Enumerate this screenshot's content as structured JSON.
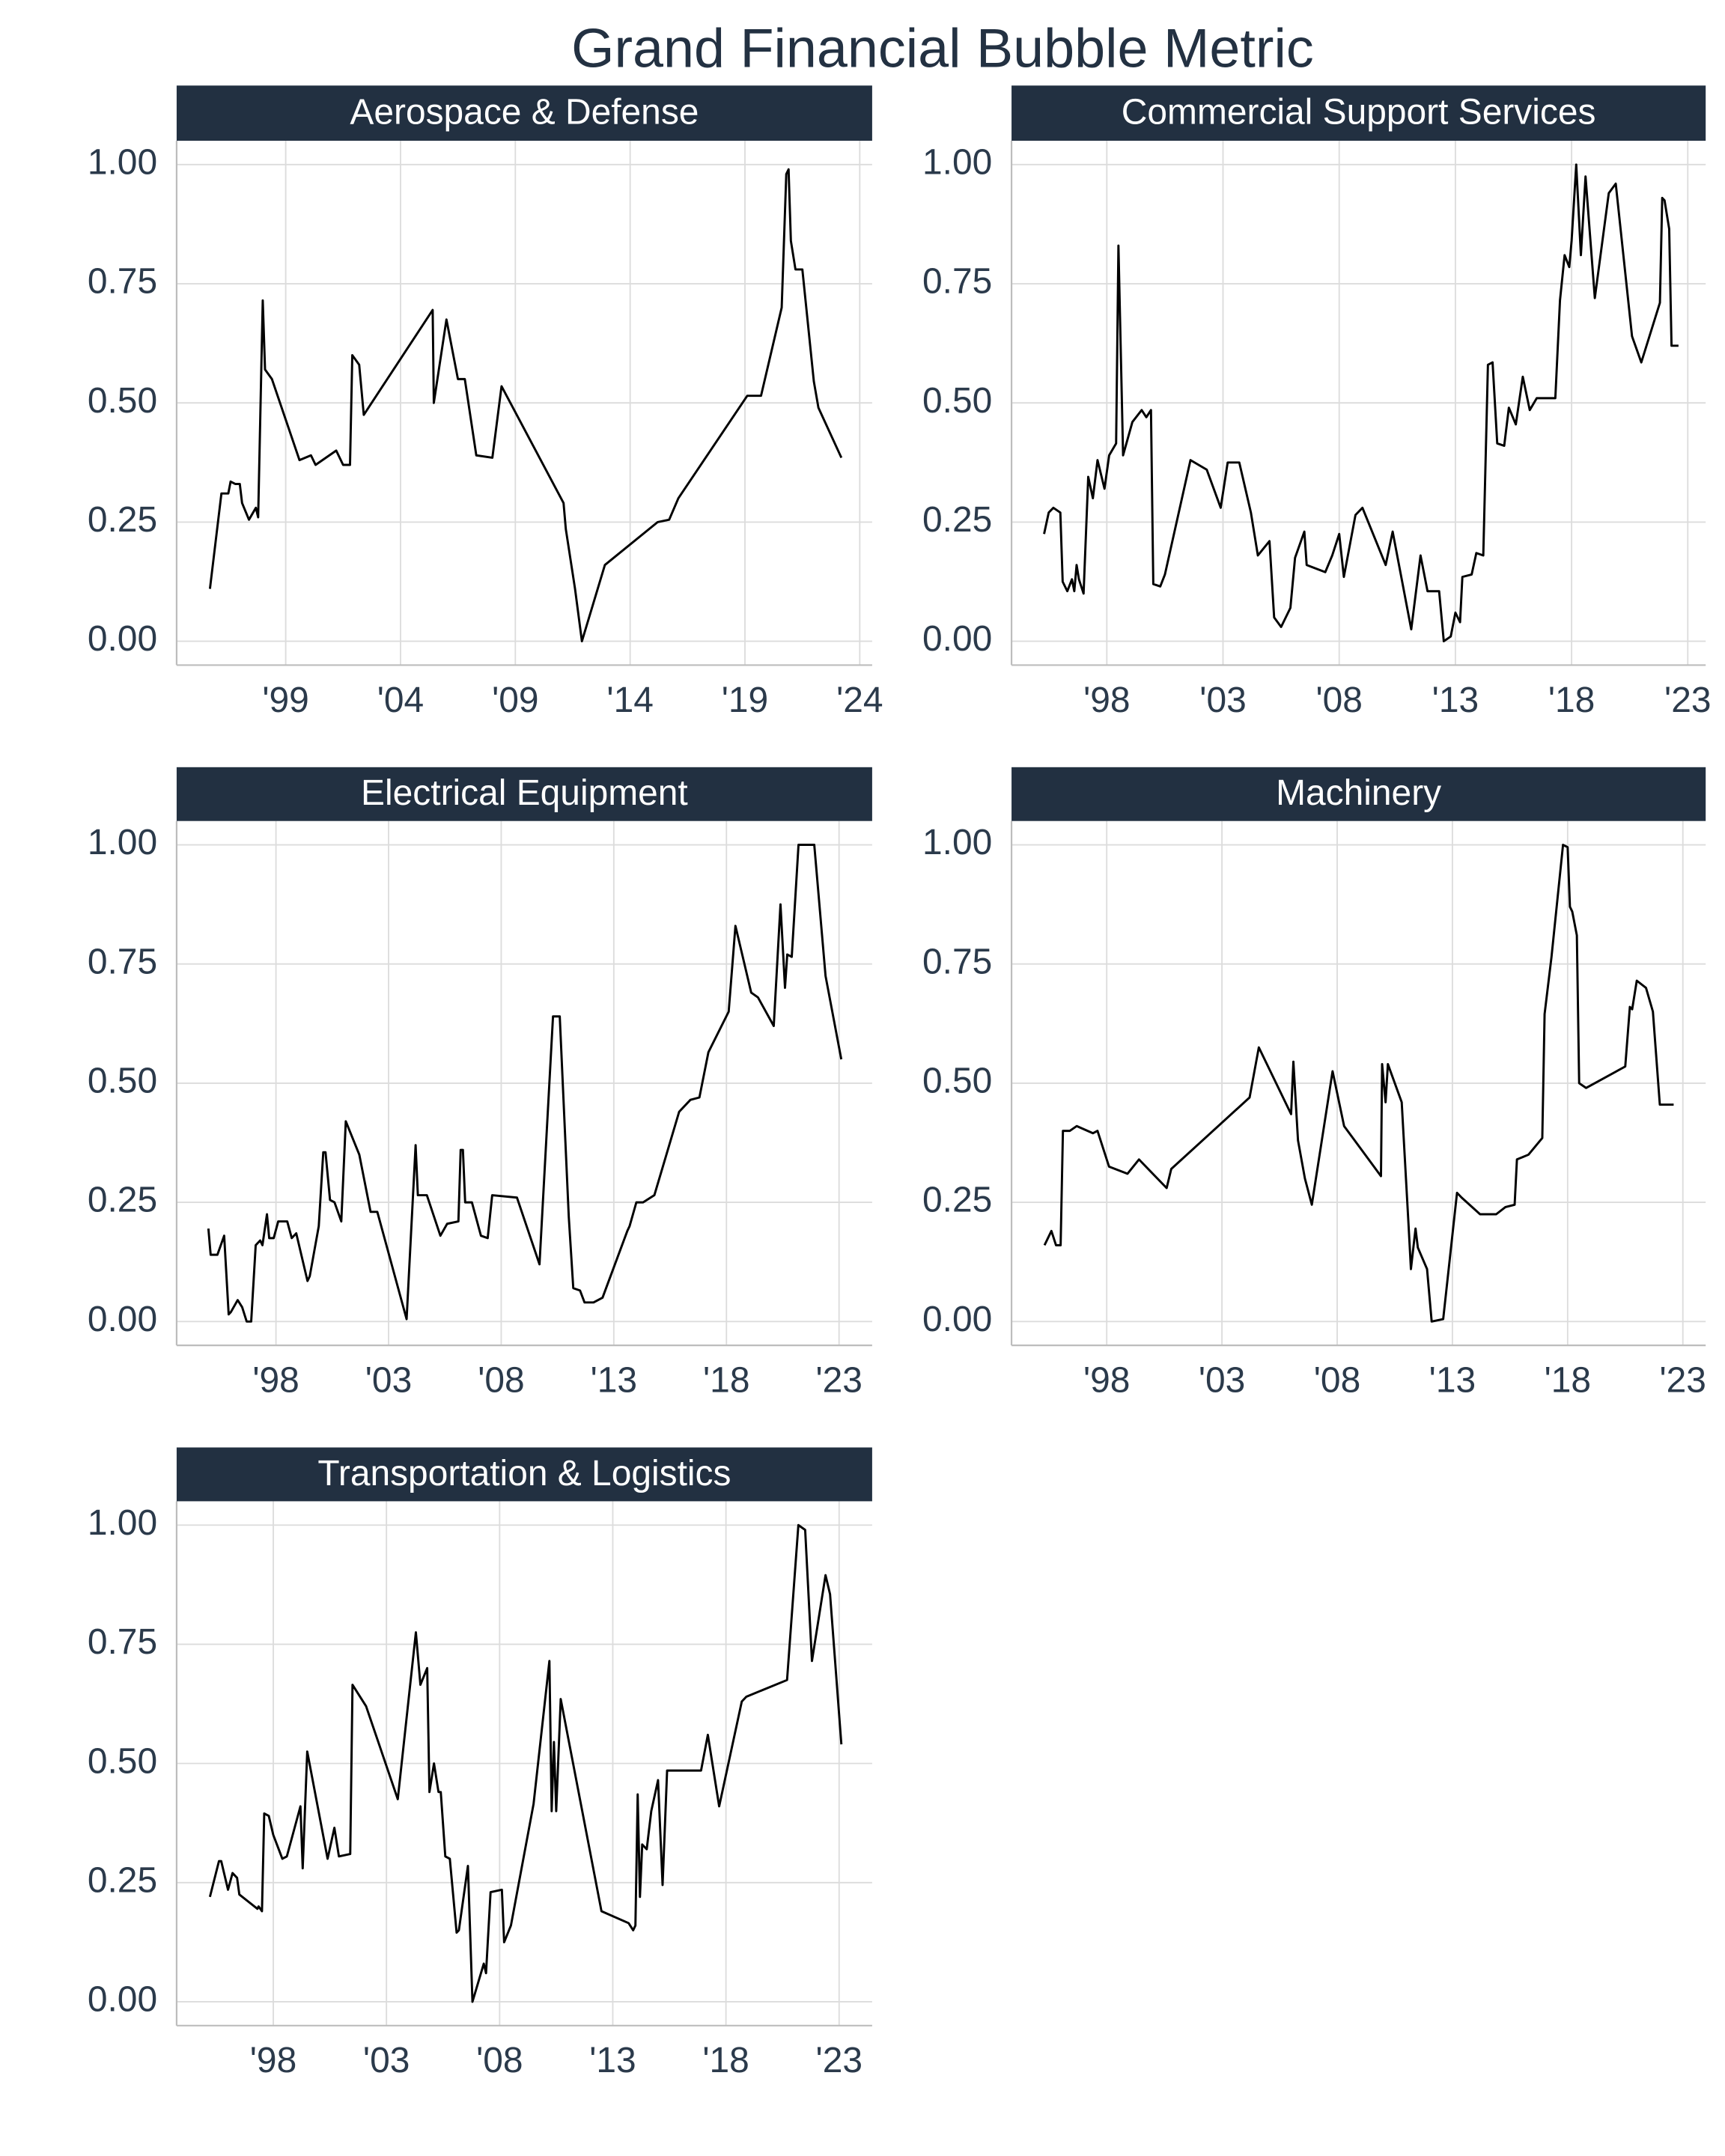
{
  "title": "Grand Financial Bubble Metric",
  "chart_data": [
    {
      "type": "line",
      "title": "Aerospace & Defense",
      "color": "#000000",
      "grid": true,
      "xlim": [
        1994.25,
        2024.54
      ],
      "ylim": [
        -0.05,
        1.05
      ],
      "xticks": [
        {
          "value": 1999,
          "label": "'99"
        },
        {
          "value": 2004,
          "label": "'04"
        },
        {
          "value": 2009,
          "label": "'09"
        },
        {
          "value": 2014,
          "label": "'14"
        },
        {
          "value": 2019,
          "label": "'19"
        },
        {
          "value": 2024,
          "label": "'24"
        }
      ],
      "yticks": [
        {
          "value": 0,
          "label": "0.00"
        },
        {
          "value": 0.25,
          "label": "0.25"
        },
        {
          "value": 0.5,
          "label": "0.50"
        },
        {
          "value": 0.75,
          "label": "0.75"
        },
        {
          "value": 1,
          "label": "1.00"
        }
      ],
      "x": [
        1995.7,
        1996.2,
        1996.5,
        1996.6,
        1996.8,
        1997.0,
        1997.1,
        1997.4,
        1997.7,
        1997.8,
        1998.0,
        1998.1,
        1998.4,
        1999.6,
        2000.1,
        2000.3,
        2001.2,
        2001.5,
        2001.8,
        2001.9,
        2002.2,
        2002.4,
        2005.4,
        2005.45,
        2006.0,
        2006.5,
        2006.8,
        2007.3,
        2008.0,
        2008.4,
        2011.1,
        2011.2,
        2011.6,
        2011.9,
        2012.9,
        2015.2,
        2015.7,
        2016.1,
        2019.1,
        2019.7,
        2020.6,
        2020.8,
        2020.9,
        2021.0,
        2021.2,
        2021.5,
        2022.0,
        2022.2,
        2023.2
      ],
      "values": [
        0.11,
        0.31,
        0.31,
        0.335,
        0.33,
        0.33,
        0.29,
        0.255,
        0.28,
        0.26,
        0.715,
        0.57,
        0.55,
        0.38,
        0.39,
        0.37,
        0.4,
        0.37,
        0.37,
        0.6,
        0.58,
        0.475,
        0.695,
        0.5,
        0.675,
        0.55,
        0.55,
        0.39,
        0.385,
        0.535,
        0.29,
        0.235,
        0.11,
        0.0,
        0.16,
        0.25,
        0.255,
        0.3,
        0.515,
        0.515,
        0.7,
        0.98,
        0.99,
        0.84,
        0.78,
        0.78,
        0.545,
        0.49,
        0.385
      ]
    },
    {
      "type": "line",
      "title": "Commercial Support Services",
      "color": "#000000",
      "grid": true,
      "xlim": [
        1993.9,
        2023.77
      ],
      "ylim": [
        -0.05,
        1.05
      ],
      "xticks": [
        {
          "value": 1998,
          "label": "'98"
        },
        {
          "value": 2003,
          "label": "'03"
        },
        {
          "value": 2008,
          "label": "'08"
        },
        {
          "value": 2013,
          "label": "'13"
        },
        {
          "value": 2018,
          "label": "'18"
        },
        {
          "value": 2023,
          "label": "'23"
        }
      ],
      "yticks": [
        {
          "value": 0,
          "label": "0.00"
        },
        {
          "value": 0.25,
          "label": "0.25"
        },
        {
          "value": 0.5,
          "label": "0.50"
        },
        {
          "value": 0.75,
          "label": "0.75"
        },
        {
          "value": 1,
          "label": "1.00"
        }
      ],
      "x": [
        1995.3,
        1995.5,
        1995.7,
        1996.0,
        1996.1,
        1996.3,
        1996.5,
        1996.6,
        1996.7,
        1996.8,
        1997.0,
        1997.2,
        1997.4,
        1997.6,
        1997.9,
        1998.1,
        1998.4,
        1998.5,
        1998.7,
        1999.1,
        1999.5,
        1999.7,
        1999.9,
        2000.0,
        2000.3,
        2000.5,
        2001.6,
        2002.3,
        2002.9,
        2003.2,
        2003.7,
        2004.2,
        2004.5,
        2005.0,
        2005.2,
        2005.5,
        2005.9,
        2006.1,
        2006.5,
        2006.6,
        2007.4,
        2007.7,
        2008.0,
        2008.2,
        2008.7,
        2009.0,
        2010.0,
        2010.3,
        2011.1,
        2011.5,
        2011.8,
        2012.3,
        2012.5,
        2012.8,
        2013.0,
        2013.2,
        2013.3,
        2013.7,
        2013.9,
        2014.2,
        2014.4,
        2014.6,
        2014.8,
        2015.1,
        2015.3,
        2015.6,
        2015.9,
        2016.2,
        2016.5,
        2017.3,
        2017.5,
        2017.7,
        2017.9,
        2018.0,
        2018.2,
        2018.4,
        2018.6,
        2019.0,
        2019.6,
        2019.9,
        2020.6,
        2021.0,
        2021.8,
        2021.9,
        2022.0,
        2022.2,
        2022.3,
        2022.6
      ],
      "values": [
        0.225,
        0.27,
        0.28,
        0.27,
        0.125,
        0.105,
        0.13,
        0.105,
        0.16,
        0.13,
        0.1,
        0.345,
        0.3,
        0.38,
        0.32,
        0.39,
        0.415,
        0.83,
        0.39,
        0.46,
        0.485,
        0.47,
        0.485,
        0.12,
        0.115,
        0.14,
        0.38,
        0.36,
        0.28,
        0.375,
        0.375,
        0.27,
        0.18,
        0.21,
        0.05,
        0.03,
        0.07,
        0.175,
        0.23,
        0.16,
        0.145,
        0.18,
        0.225,
        0.135,
        0.265,
        0.28,
        0.16,
        0.23,
        0.025,
        0.18,
        0.105,
        0.105,
        0.0,
        0.01,
        0.06,
        0.04,
        0.135,
        0.14,
        0.185,
        0.18,
        0.58,
        0.585,
        0.415,
        0.41,
        0.49,
        0.455,
        0.555,
        0.485,
        0.51,
        0.51,
        0.715,
        0.81,
        0.785,
        0.84,
        1.0,
        0.81,
        0.975,
        0.72,
        0.94,
        0.96,
        0.64,
        0.585,
        0.71,
        0.93,
        0.925,
        0.865,
        0.62,
        0.62
      ]
    },
    {
      "type": "line",
      "title": "Electrical Equipment",
      "color": "#000000",
      "grid": true,
      "xlim": [
        1993.59,
        2024.47
      ],
      "ylim": [
        -0.05,
        1.05
      ],
      "xticks": [
        {
          "value": 1998,
          "label": "'98"
        },
        {
          "value": 2003,
          "label": "'03"
        },
        {
          "value": 2008,
          "label": "'08"
        },
        {
          "value": 2013,
          "label": "'13"
        },
        {
          "value": 2018,
          "label": "'18"
        },
        {
          "value": 2023,
          "label": "'23"
        }
      ],
      "yticks": [
        {
          "value": 0,
          "label": "0.00"
        },
        {
          "value": 0.25,
          "label": "0.25"
        },
        {
          "value": 0.5,
          "label": "0.50"
        },
        {
          "value": 0.75,
          "label": "0.75"
        },
        {
          "value": 1,
          "label": "1.00"
        }
      ],
      "x": [
        1995.0,
        1995.1,
        1995.4,
        1995.7,
        1995.9,
        1996.0,
        1996.3,
        1996.5,
        1996.7,
        1996.9,
        1997.1,
        1997.3,
        1997.4,
        1997.6,
        1997.7,
        1997.9,
        1998.1,
        1998.5,
        1998.7,
        1998.9,
        1999.4,
        1999.5,
        1999.9,
        2000.1,
        2000.2,
        2000.4,
        2000.6,
        2000.9,
        2001.1,
        2001.7,
        2002.2,
        2002.5,
        2003.8,
        2004.2,
        2004.3,
        2004.7,
        2005.3,
        2005.6,
        2006.1,
        2006.2,
        2006.3,
        2006.4,
        2006.7,
        2007.1,
        2007.4,
        2007.6,
        2008.7,
        2009.7,
        2010.3,
        2010.6,
        2011.0,
        2011.2,
        2011.5,
        2011.7,
        2012.1,
        2012.5,
        2013.6,
        2013.7,
        2014.0,
        2014.3,
        2014.8,
        2015.9,
        2016.4,
        2016.8,
        2017.2,
        2018.1,
        2018.4,
        2019.1,
        2019.4,
        2020.1,
        2020.4,
        2020.6,
        2020.7,
        2020.9,
        2021.2,
        2021.9,
        2022.4,
        2023.1
      ],
      "values": [
        0.195,
        0.14,
        0.14,
        0.18,
        0.015,
        0.02,
        0.045,
        0.03,
        0.0,
        0.0,
        0.16,
        0.17,
        0.16,
        0.225,
        0.175,
        0.175,
        0.21,
        0.21,
        0.175,
        0.185,
        0.085,
        0.095,
        0.2,
        0.355,
        0.355,
        0.255,
        0.25,
        0.21,
        0.42,
        0.35,
        0.23,
        0.23,
        0.005,
        0.37,
        0.265,
        0.265,
        0.18,
        0.205,
        0.21,
        0.36,
        0.36,
        0.25,
        0.25,
        0.18,
        0.175,
        0.265,
        0.26,
        0.12,
        0.64,
        0.64,
        0.22,
        0.07,
        0.065,
        0.04,
        0.04,
        0.05,
        0.19,
        0.2,
        0.25,
        0.25,
        0.265,
        0.44,
        0.465,
        0.47,
        0.565,
        0.65,
        0.83,
        0.69,
        0.68,
        0.62,
        0.875,
        0.7,
        0.77,
        0.765,
        1.0,
        1.0,
        0.725,
        0.55
      ]
    },
    {
      "type": "line",
      "title": "Machinery",
      "color": "#000000",
      "grid": true,
      "xlim": [
        1993.87,
        2023.99
      ],
      "ylim": [
        -0.05,
        1.05
      ],
      "xticks": [
        {
          "value": 1998,
          "label": "'98"
        },
        {
          "value": 2003,
          "label": "'03"
        },
        {
          "value": 2008,
          "label": "'08"
        },
        {
          "value": 2013,
          "label": "'13"
        },
        {
          "value": 2018,
          "label": "'18"
        },
        {
          "value": 2023,
          "label": "'23"
        }
      ],
      "yticks": [
        {
          "value": 0,
          "label": "0.00"
        },
        {
          "value": 0.25,
          "label": "0.25"
        },
        {
          "value": 0.5,
          "label": "0.50"
        },
        {
          "value": 0.75,
          "label": "0.75"
        },
        {
          "value": 1,
          "label": "1.00"
        }
      ],
      "x": [
        1995.3,
        1995.6,
        1995.8,
        1996.0,
        1996.1,
        1996.4,
        1996.7,
        1997.4,
        1997.6,
        1998.1,
        1998.9,
        1999.4,
        2000.6,
        2000.8,
        2004.2,
        2004.6,
        2006.0,
        2006.1,
        2006.3,
        2006.6,
        2006.9,
        2007.8,
        2008.3,
        2009.9,
        2009.95,
        2010.1,
        2010.2,
        2010.8,
        2011.1,
        2011.2,
        2011.4,
        2011.5,
        2011.9,
        2012.1,
        2012.6,
        2013.2,
        2013.4,
        2014.2,
        2014.9,
        2015.3,
        2015.7,
        2015.8,
        2016.3,
        2016.9,
        2017.0,
        2017.3,
        2017.8,
        2018.0,
        2018.1,
        2018.2,
        2018.4,
        2018.5,
        2018.8,
        2020.5,
        2020.7,
        2020.8,
        2021.0,
        2021.4,
        2021.7,
        2022.0,
        2022.6
      ],
      "values": [
        0.16,
        0.19,
        0.16,
        0.16,
        0.4,
        0.4,
        0.41,
        0.395,
        0.4,
        0.325,
        0.31,
        0.34,
        0.28,
        0.32,
        0.47,
        0.575,
        0.435,
        0.545,
        0.38,
        0.3,
        0.245,
        0.525,
        0.41,
        0.305,
        0.54,
        0.46,
        0.54,
        0.46,
        0.2,
        0.11,
        0.195,
        0.155,
        0.11,
        0.0,
        0.005,
        0.27,
        0.26,
        0.225,
        0.225,
        0.24,
        0.245,
        0.34,
        0.35,
        0.385,
        0.645,
        0.765,
        1.0,
        0.995,
        0.87,
        0.86,
        0.81,
        0.5,
        0.49,
        0.535,
        0.66,
        0.655,
        0.715,
        0.7,
        0.65,
        0.455,
        0.455
      ]
    },
    {
      "type": "line",
      "title": "Transportation & Logistics",
      "color": "#000000",
      "grid": true,
      "xlim": [
        1993.73,
        2024.46
      ],
      "ylim": [
        -0.05,
        1.05
      ],
      "xticks": [
        {
          "value": 1998,
          "label": "'98"
        },
        {
          "value": 2003,
          "label": "'03"
        },
        {
          "value": 2008,
          "label": "'08"
        },
        {
          "value": 2013,
          "label": "'13"
        },
        {
          "value": 2018,
          "label": "'18"
        },
        {
          "value": 2023,
          "label": "'23"
        }
      ],
      "yticks": [
        {
          "value": 0,
          "label": "0.00"
        },
        {
          "value": 0.25,
          "label": "0.25"
        },
        {
          "value": 0.5,
          "label": "0.50"
        },
        {
          "value": 0.75,
          "label": "0.75"
        },
        {
          "value": 1,
          "label": "1.00"
        }
      ],
      "x": [
        1995.2,
        1995.6,
        1995.7,
        1996.0,
        1996.2,
        1996.4,
        1996.5,
        1997.3,
        1997.35,
        1997.5,
        1997.6,
        1997.8,
        1998.0,
        1998.4,
        1998.6,
        1999.2,
        1999.3,
        1999.5,
        2000.4,
        2000.7,
        2000.9,
        2001.4,
        2001.5,
        2002.1,
        2003.5,
        2004.3,
        2004.5,
        2004.8,
        2004.9,
        2005.1,
        2005.3,
        2005.4,
        2005.6,
        2005.8,
        2006.1,
        2006.2,
        2006.6,
        2006.8,
        2007.3,
        2007.4,
        2007.6,
        2008.1,
        2008.2,
        2008.5,
        2009.5,
        2010.2,
        2010.3,
        2010.4,
        2010.5,
        2010.7,
        2012.5,
        2013.7,
        2013.9,
        2014.0,
        2014.1,
        2014.2,
        2014.3,
        2014.5,
        2014.7,
        2015.0,
        2015.2,
        2015.4,
        2016.9,
        2017.2,
        2017.7,
        2018.7,
        2018.9,
        2020.7,
        2021.2,
        2021.5,
        2021.8,
        2022.4,
        2022.6,
        2023.1
      ],
      "values": [
        0.22,
        0.295,
        0.295,
        0.235,
        0.27,
        0.26,
        0.225,
        0.195,
        0.2,
        0.19,
        0.395,
        0.39,
        0.35,
        0.3,
        0.305,
        0.41,
        0.28,
        0.525,
        0.3,
        0.365,
        0.305,
        0.31,
        0.665,
        0.62,
        0.425,
        0.775,
        0.665,
        0.7,
        0.44,
        0.5,
        0.44,
        0.44,
        0.305,
        0.3,
        0.145,
        0.15,
        0.285,
        0.0,
        0.08,
        0.06,
        0.23,
        0.235,
        0.125,
        0.16,
        0.415,
        0.715,
        0.4,
        0.545,
        0.4,
        0.635,
        0.19,
        0.165,
        0.15,
        0.16,
        0.435,
        0.22,
        0.33,
        0.32,
        0.4,
        0.465,
        0.245,
        0.485,
        0.485,
        0.56,
        0.41,
        0.63,
        0.64,
        0.675,
        1.0,
        0.99,
        0.715,
        0.895,
        0.855,
        0.54
      ]
    }
  ]
}
